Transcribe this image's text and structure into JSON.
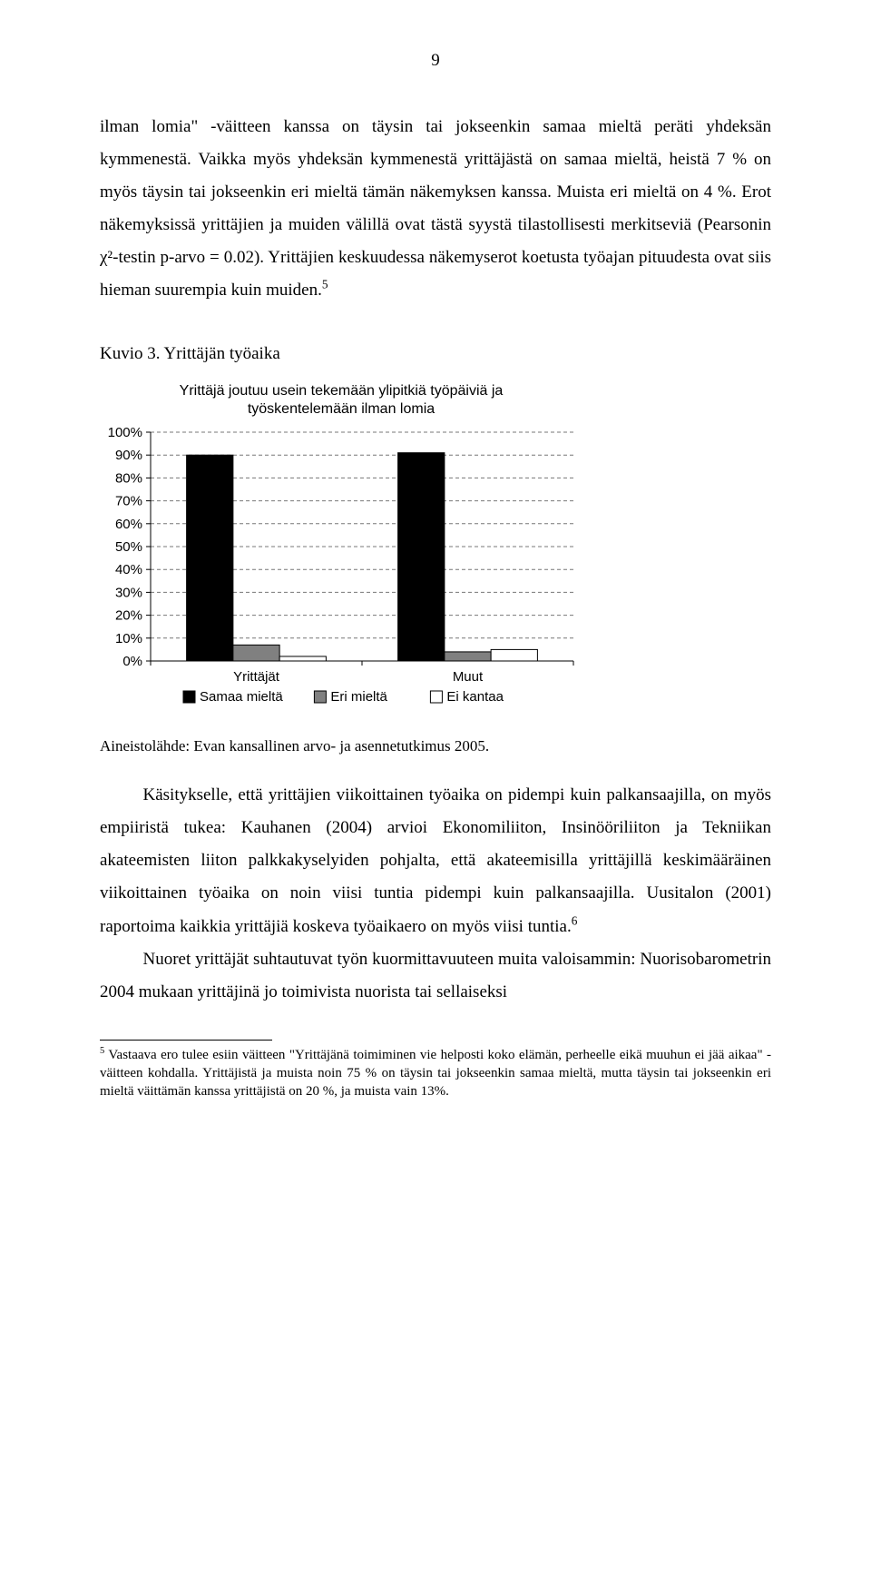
{
  "page_number": "9",
  "paragraphs": {
    "p1": "ilman lomia\" -väitteen kanssa on täysin tai jokseenkin samaa mieltä peräti yhdeksän kymmenestä. Vaikka myös yhdeksän kymmenestä yrittäjästä on samaa mieltä, heistä 7 % on myös täysin tai jokseenkin eri mieltä tämän näkemyksen kanssa. Muista eri mieltä on 4 %. Erot näkemyksissä yrittäjien ja muiden välillä ovat tästä syystä tilastollisesti merkitseviä (Pearsonin χ²-testin p-arvo = 0.02). Yrittäjien keskuudessa näkemyserot koetusta työajan pituudesta ovat siis hieman suurempia kuin muiden.",
    "p1_sup": "5",
    "p2": "Käsitykselle, että yrittäjien viikoittainen työaika on pidempi kuin palkansaajilla, on myös empiiristä tukea: Kauhanen (2004) arvioi Ekonomiliiton, Insinööriliiton ja Tekniikan akateemisten liiton palkkakyselyiden pohjalta, että akateemisilla yrittäjillä keskimääräinen viikoittainen työaika on noin viisi tuntia pidempi kuin palkansaajilla. Uusitalon (2001) raportoima kaikkia yrittäjiä koskeva työaikaero on myös viisi tuntia.",
    "p2_sup": "6",
    "p3": "Nuoret yrittäjät suhtautuvat työn kuormittavuuteen muita valoisammin: Nuorisobarometrin 2004 mukaan yrittäjinä jo toimivista nuorista tai sellaiseksi"
  },
  "chart": {
    "caption": "Kuvio 3. Yrittäjän työaika",
    "title_line1": "Yrittäjä joutuu usein tekemään ylipitkiä työpäiviä ja",
    "title_line2": "työskentelemään ilman lomia",
    "type": "bar",
    "categories": [
      "Yrittäjät",
      "Muut"
    ],
    "series": [
      {
        "name": "Samaa mieltä",
        "values": [
          90,
          91
        ],
        "fill": "#000000",
        "border": "#000000"
      },
      {
        "name": "Eri mieltä",
        "values": [
          7,
          4
        ],
        "fill": "#808080",
        "border": "#000000"
      },
      {
        "name": "Ei kantaa",
        "values": [
          2,
          5
        ],
        "fill": "#ffffff",
        "border": "#000000"
      }
    ],
    "ylim": [
      0,
      100
    ],
    "ytick_step": 10,
    "yticks": [
      "0%",
      "10%",
      "20%",
      "30%",
      "40%",
      "50%",
      "60%",
      "70%",
      "80%",
      "90%",
      "100%"
    ],
    "axis_fontsize": 15,
    "axis_font": "Arial",
    "plot_bg": "#ffffff",
    "grid_color": "#777777",
    "axis_color": "#000000",
    "tick_color": "#000000",
    "bar_group_width": 0.66,
    "bar_width_rel": 0.33,
    "legend_marker_size": 13,
    "legend": [
      "Samaa mieltä",
      "Eri mieltä",
      "Ei kantaa"
    ]
  },
  "source_line": "Aineistolähde: Evan kansallinen arvo- ja asennetutkimus 2005.",
  "footnotes": {
    "f5_sup": "5",
    "f5": " Vastaava ero tulee esiin väitteen \"Yrittäjänä toimiminen vie helposti koko elämän, perheelle eikä muuhun ei jää aikaa\" -väitteen kohdalla. Yrittäjistä ja muista noin 75 % on täysin tai jokseenkin samaa mieltä, mutta täysin tai jokseenkin eri mieltä väittämän kanssa yrittäjistä on 20 %, ja muista vain 13%."
  }
}
